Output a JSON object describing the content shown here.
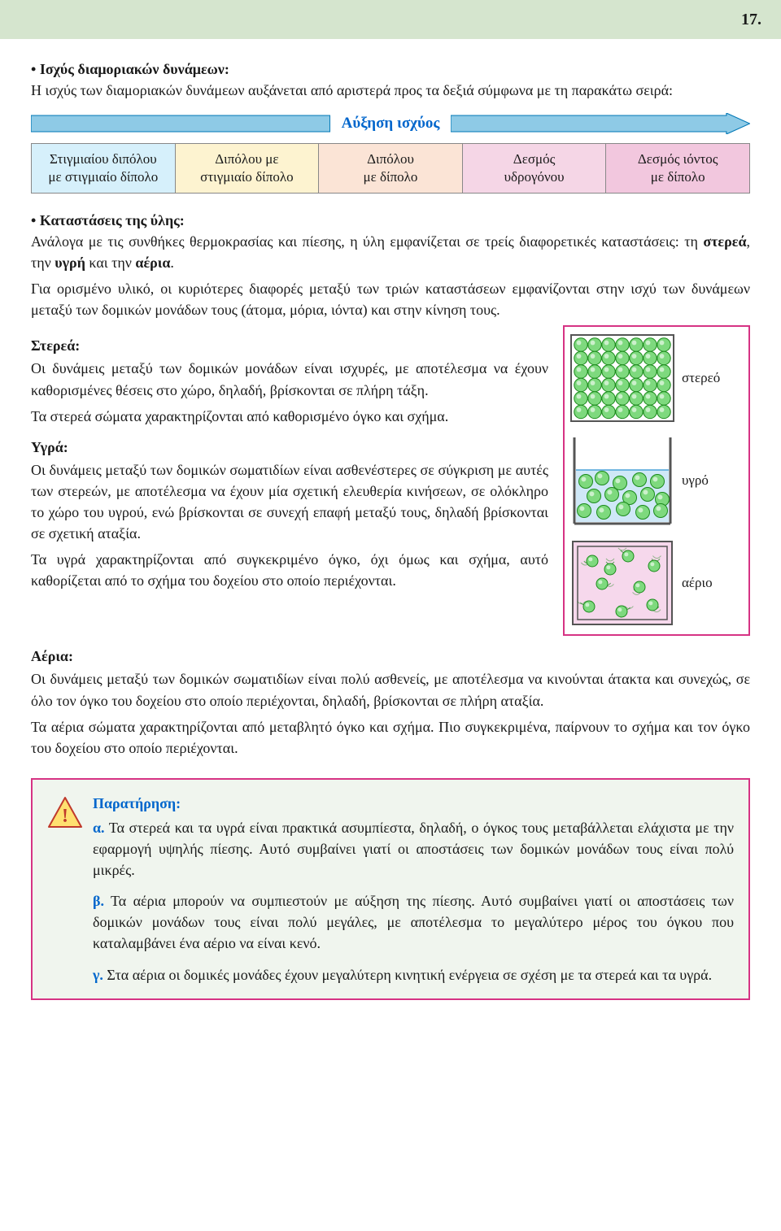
{
  "page_number": "17.",
  "section1": {
    "title": "Ισχύς διαμοριακών δυνάμεων:",
    "text": "Η ισχύς των διαμοριακών δυνάμεων αυξάνεται από αριστερά προς τα δεξιά σύμφωνα με τη παρακάτω σειρά:"
  },
  "arrow_label": "Αύξηση ισχύος",
  "arrow_colors": {
    "left_fill": "#8ecae6",
    "left_stroke": "#0077b6",
    "right_fill": "#8ecae6",
    "right_stroke": "#0077b6"
  },
  "force_table": {
    "cells": [
      {
        "line1": "Στιγμιαίου διπόλου",
        "line2": "με στιγμιαίο δίπολο",
        "bg": "#d6f0fb"
      },
      {
        "line1": "Διπόλου με",
        "line2": "στιγμιαίο δίπολο",
        "bg": "#fdf3d0"
      },
      {
        "line1": "Διπόλου",
        "line2": "με δίπολο",
        "bg": "#fbe4d6"
      },
      {
        "line1": "Δεσμός",
        "line2": "υδρογόνου",
        "bg": "#f5d6e6"
      },
      {
        "line1": "Δεσμός ιόντος",
        "line2": "με δίπολο",
        "bg": "#f2c7de"
      }
    ]
  },
  "section2": {
    "title": "Καταστάσεις της ύλης:",
    "p1a": "Ανάλογα με τις συνθήκες θερμοκρασίας και πίεσης, η ύλη εμφανίζεται σε τρείς διαφορετικές καταστάσεις: τη ",
    "p1b": "στερεά",
    "p1c": ", την ",
    "p1d": "υγρή",
    "p1e": " και την ",
    "p1f": "αέρια",
    "p1g": ".",
    "p2": "Για ορισμένο υλικό, οι κυριότερες διαφορές μεταξύ των τριών καταστάσεων εμφανίζονται στην ισχύ των δυνάμεων μεταξύ των δομικών μονάδων τους (άτομα, μόρια, ιόντα) και στην κίνηση τους."
  },
  "solid": {
    "head": "Στερεά:",
    "p1": "Οι δυνάμεις μεταξύ των δομικών μονάδων είναι ισχυρές, με αποτέλεσμα να έχουν καθορισμένες θέσεις στο χώρο, δηλαδή, βρίσκονται σε πλήρη τάξη.",
    "p2": "Τα στερεά σώματα χαρακτηρίζονται από καθορισμένο όγκο και σχήμα.",
    "label": "στερεό"
  },
  "liquid": {
    "head": "Υγρά:",
    "p1": "Οι δυνάμεις μεταξύ των δομικών σωματιδίων είναι ασθενέστερες σε σύγκριση με αυτές των στερεών, με αποτέλεσμα να έχουν μία σχετική ελευθερία κινήσεων, σε ολόκληρο το χώρο του υγρού, ενώ βρίσκονται σε συνεχή επαφή μεταξύ τους, δηλαδή βρίσκονται σε σχετική αταξία.",
    "p2": "Τα υγρά χαρακτηρίζονται από συγκεκριμένο όγκο, όχι όμως και σχήμα, αυτό καθορίζεται από το σχήμα του δοχείου στο οποίο περιέχονται.",
    "label": "υγρό"
  },
  "gas": {
    "head": "Αέρια:",
    "p1": "Οι δυνάμεις μεταξύ των δομικών σωματιδίων είναι πολύ ασθενείς, με αποτέλεσμα να κινούνται άτακτα και συνεχώς, σε όλο τον όγκο του δοχείου στο οποίο περιέχονται, δηλαδή, βρίσκονται σε πλήρη αταξία.",
    "p2": "Τα αέρια σώματα χαρακτηρίζονται από μεταβλητό όγκο και σχήμα. Πιο συγκεκριμένα, παίρνουν το σχήμα και τον όγκο του δοχείου στο οποίο περιέχονται.",
    "label": "αέριο"
  },
  "note": {
    "title": "Παρατήρηση:",
    "a_letter": "α.",
    "a": " Τα στερεά και τα υγρά είναι πρακτικά ασυμπίεστα, δηλαδή, ο όγκος τους μεταβάλλεται ελάχιστα με την εφαρμογή υψηλής πίεσης. Αυτό συμβαίνει γιατί οι αποστάσεις των δομικών μονάδων τους είναι πολύ μικρές.",
    "b_letter": "β.",
    "b": " Τα αέρια μπορούν να συμπιεστούν με αύξηση της πίεσης. Αυτό συμβαίνει γιατί οι αποστάσεις των δομικών μονάδων τους είναι πολύ μεγάλες, με αποτέλεσμα το μεγαλύτερο μέρος του όγκου που καταλαμβάνει ένα αέριο να είναι κενό.",
    "c_letter": "γ.",
    "c": " Στα αέρια οι δομικές μονάδες έχουν μεγαλύτερη κινητική ενέργεια σε σχέση με τα στερεά και τα υγρά."
  },
  "fig_colors": {
    "particle_fill": "#7ed97e",
    "particle_stroke": "#1b8a1b",
    "solid_bg": "#ffffff",
    "liquid_bg": "#cfe8f7",
    "gas_bg": "#f6d8ec",
    "container_stroke": "#555555"
  }
}
